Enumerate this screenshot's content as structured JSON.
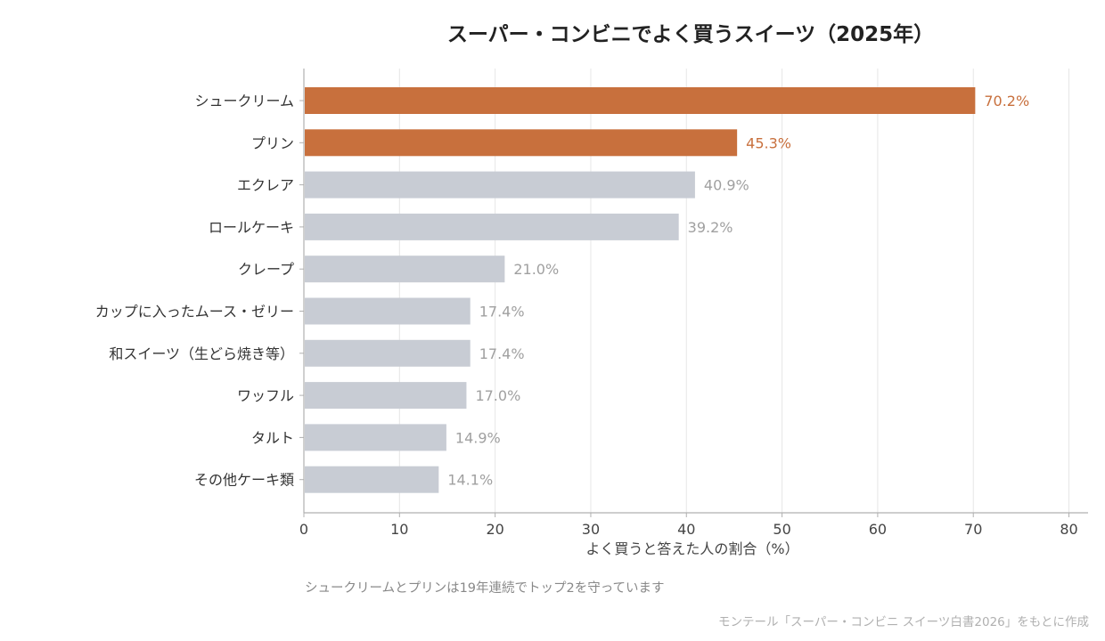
{
  "chart_data": {
    "type": "bar",
    "orientation": "horizontal",
    "title": "スーパー・コンビニでよく買うスイーツ（2025年）",
    "xlabel": "よく買うと答えた人の割合（%）",
    "ylabel": "",
    "xlim": [
      0,
      82
    ],
    "xticks": [
      0,
      10,
      20,
      30,
      40,
      50,
      60,
      70,
      80
    ],
    "grid": "vertical",
    "categories": [
      "シュークリーム",
      "プリン",
      "エクレア",
      "ロールケーキ",
      "クレープ",
      "カップに入ったムース・ゼリー",
      "和スイーツ（生どら焼き等）",
      "ワッフル",
      "タルト",
      "その他ケーキ類"
    ],
    "values": [
      70.2,
      45.3,
      40.9,
      39.2,
      21.0,
      17.4,
      17.4,
      17.0,
      14.9,
      14.1
    ],
    "value_labels": [
      "70.2%",
      "45.3%",
      "40.9%",
      "39.2%",
      "21.0%",
      "17.4%",
      "17.4%",
      "17.0%",
      "14.9%",
      "14.1%"
    ],
    "highlight_count": 2,
    "colors": {
      "highlight": "#c8703d",
      "base": "#c8ccd4",
      "base_label": "#a0a0a0",
      "grid": "#e6e6e6",
      "axis": "#b0b0b0"
    },
    "note": "シュークリームとプリンは19年連続でトップ2を守っています",
    "source": "モンテール「スーパー・コンビニ スイーツ白書2026」をもとに作成"
  }
}
